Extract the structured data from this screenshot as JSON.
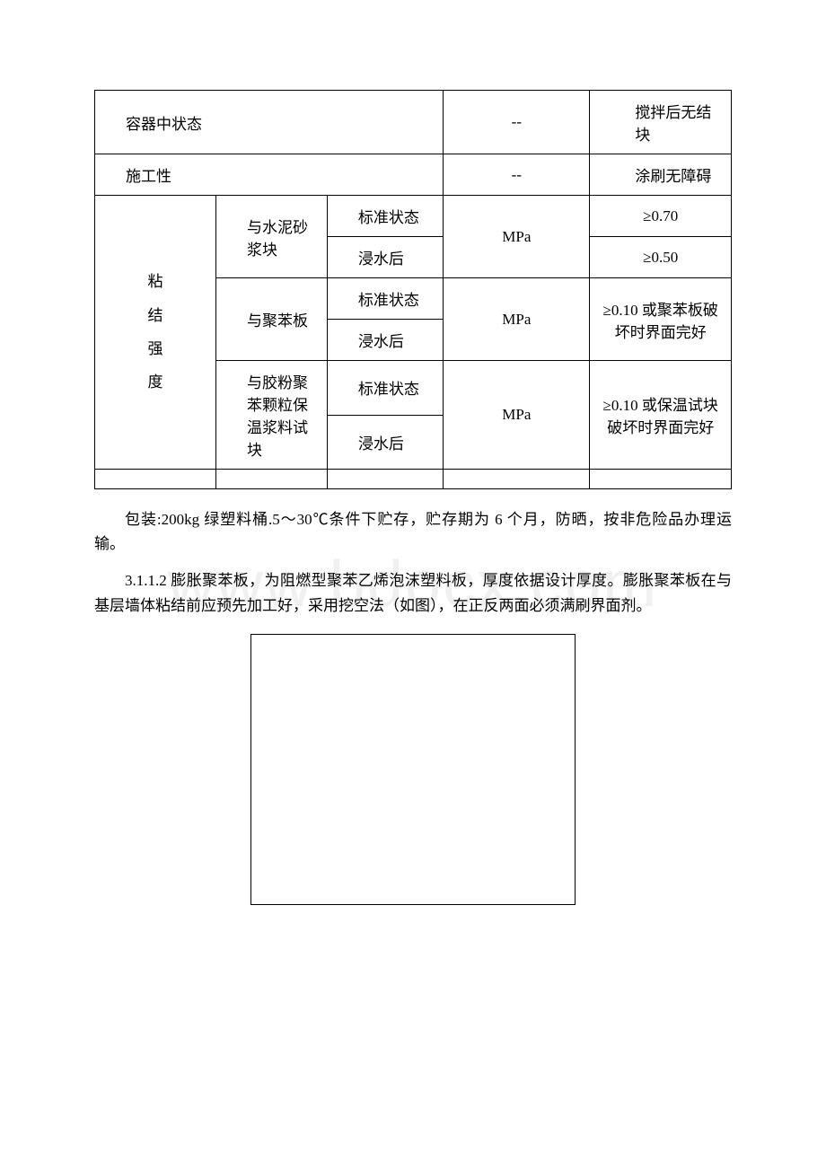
{
  "table": {
    "row1": {
      "label": "容器中状态",
      "unit": "--",
      "value": "搅拌后无结块"
    },
    "row2": {
      "label": "施工性",
      "unit": "--",
      "value": "涂刷无障碍"
    },
    "bond_strength_label": "粘\n结\n强\n度",
    "group1": {
      "material": "与水泥砂浆块",
      "cond1": "标准状态",
      "cond2": "浸水后",
      "unit": "MPa",
      "value1": "≥0.70",
      "value2": "≥0.50"
    },
    "group2": {
      "material": "与聚苯板",
      "cond1": "标准状态",
      "cond2": "浸水后",
      "unit": "MPa",
      "value": "≥0.10 或聚苯板破坏时界面完好"
    },
    "group3": {
      "material": "与胶粉聚苯颗粒保温浆料试块",
      "cond1": "标准状态",
      "cond2": "浸水后",
      "unit": "MPa",
      "value": "≥0.10 或保温试块破坏时界面完好"
    }
  },
  "para1": "包装:200kg 绿塑料桶.5～30℃条件下贮存，贮存期为 6 个月，防晒，按非危险品办理运输。",
  "para2": "3.1.1.2 膨胀聚苯板，为阻燃型聚苯乙烯泡沫塑料板，厚度依据设计厚度。膨胀聚苯板在与基层墙体粘结前应预先加工好，采用挖空法（如图），在正反两面必须满刷界面剂。",
  "watermark_text": "www.bdocx.com"
}
